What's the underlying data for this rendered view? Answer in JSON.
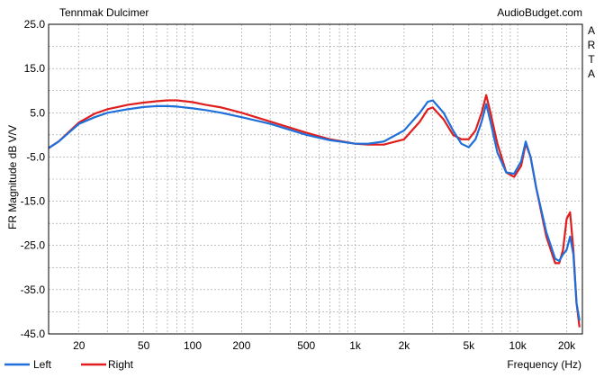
{
  "chart_data": {
    "type": "line",
    "title": "Tennmak Dulcimer",
    "source_label": "AudioBudget.com",
    "side_label": [
      "A",
      "R",
      "T",
      "A"
    ],
    "xlabel": "Frequency (Hz)",
    "ylabel": "FR Magnitude dB V/V",
    "x_scale": "log",
    "xlim": [
      13,
      25000
    ],
    "ylim": [
      -45,
      25
    ],
    "y_ticks": [
      25,
      15,
      5,
      -5,
      -15,
      -25,
      -35,
      -45
    ],
    "y_tick_labels": [
      "25.0",
      "15.0",
      "5.0",
      "-5.0",
      "-15.0",
      "-25.0",
      "-35.0",
      "-45.0"
    ],
    "x_ticks": [
      20,
      50,
      100,
      200,
      500,
      1000,
      2000,
      5000,
      10000,
      20000
    ],
    "x_tick_labels": [
      "20",
      "50",
      "100",
      "200",
      "500",
      "1k",
      "2k",
      "5k",
      "10k",
      "20k"
    ],
    "grid": true,
    "legend_position": "bottom-left",
    "series": [
      {
        "name": "Left",
        "color": "#1e6fd9",
        "x": [
          13,
          15,
          20,
          25,
          30,
          40,
          50,
          60,
          70,
          80,
          100,
          120,
          150,
          200,
          300,
          500,
          700,
          1000,
          1200,
          1500,
          2000,
          2500,
          2800,
          3000,
          3500,
          4000,
          4500,
          5000,
          5500,
          6000,
          6400,
          6800,
          7500,
          8500,
          9500,
          10500,
          11200,
          12000,
          13000,
          15000,
          17000,
          18000,
          19000,
          20000,
          21000,
          22000,
          23000,
          24000
        ],
        "y": [
          -3,
          -1.5,
          2.5,
          4,
          5,
          5.8,
          6.3,
          6.5,
          6.5,
          6.4,
          6,
          5.6,
          5,
          4,
          2.5,
          0,
          -1.2,
          -2,
          -2,
          -1.5,
          1,
          5,
          7.5,
          7.8,
          5,
          1,
          -2,
          -2.8,
          -1,
          3,
          7,
          3,
          -4,
          -8.5,
          -8.8,
          -6,
          -1.5,
          -5,
          -12,
          -22,
          -28,
          -28.5,
          -27,
          -26,
          -23,
          -27,
          -38,
          -42
        ]
      },
      {
        "name": "Right",
        "color": "#e01d1d",
        "x": [
          13,
          15,
          20,
          25,
          30,
          40,
          50,
          60,
          70,
          80,
          100,
          120,
          150,
          200,
          300,
          500,
          700,
          1000,
          1200,
          1500,
          2000,
          2500,
          2800,
          3000,
          3500,
          4000,
          4500,
          5000,
          5500,
          6000,
          6400,
          6800,
          7500,
          8500,
          9500,
          10500,
          11200,
          12000,
          13000,
          15000,
          17000,
          18000,
          19000,
          20000,
          21000,
          22000,
          23000,
          24000
        ],
        "y": [
          -3,
          -1.5,
          2.8,
          4.8,
          5.8,
          6.8,
          7.3,
          7.6,
          7.8,
          7.8,
          7.4,
          6.8,
          6.2,
          5,
          3,
          0.5,
          -1,
          -2,
          -2.2,
          -2.2,
          -1,
          3,
          5.8,
          6.2,
          3.5,
          0,
          -1,
          -1,
          1,
          5,
          9,
          5,
          -2,
          -8.5,
          -9.5,
          -7,
          -2,
          -5,
          -12,
          -23,
          -29,
          -29,
          -26,
          -19,
          -17.5,
          -26,
          -38,
          -43.5
        ]
      }
    ]
  }
}
